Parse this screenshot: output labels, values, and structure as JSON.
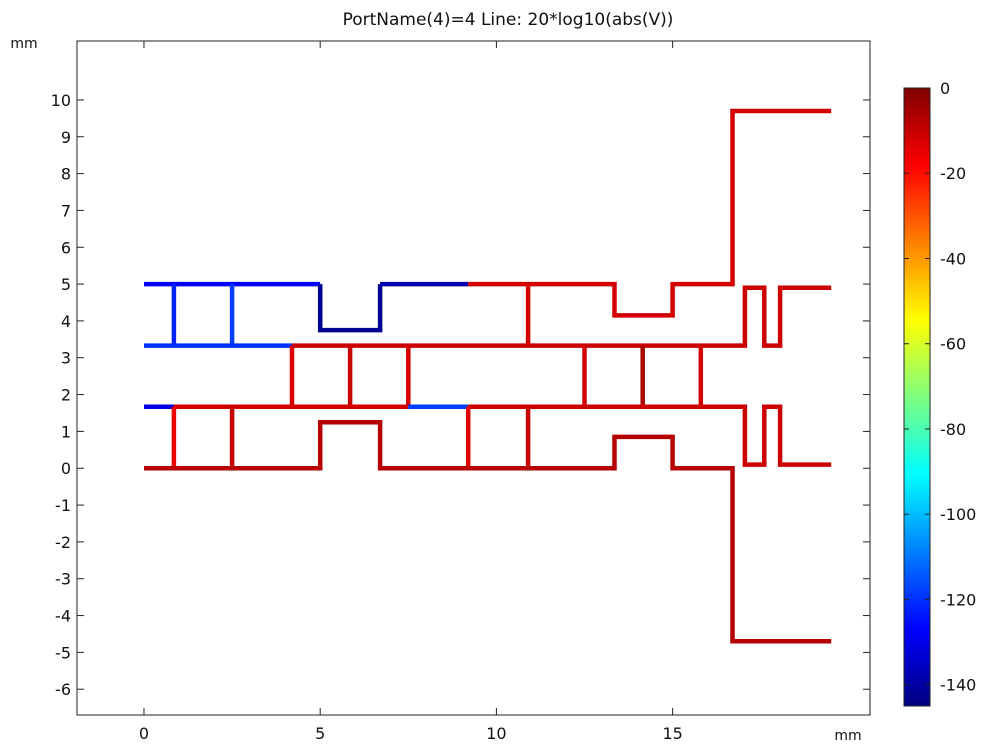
{
  "title": "PortName(4)=4   Line: 20*log10(abs(V))",
  "chart_data": {
    "type": "line",
    "title": "PortName(4)=4   Line: 20*log10(abs(V))",
    "xlabel": "mm",
    "ylabel": "mm",
    "xlim": [
      -1.9,
      20.6
    ],
    "ylim": [
      -6.7,
      11.6
    ],
    "x_ticks": [
      0,
      5,
      10,
      15
    ],
    "y_ticks": [
      -6,
      -5,
      -4,
      -3,
      -2,
      -1,
      0,
      1,
      2,
      3,
      4,
      5,
      6,
      7,
      8,
      9,
      10
    ],
    "grid": false,
    "colorbar": {
      "min": -145,
      "max": 0,
      "ticks": [
        0,
        -20,
        -40,
        -60,
        -80,
        -100,
        -120,
        -140
      ],
      "colormap": "rainbow (dark blue to dark red)"
    },
    "segments": [
      {
        "path": [
          [
            0,
            5
          ],
          [
            5,
            5
          ]
        ],
        "value": -128
      },
      {
        "path": [
          [
            5,
            5
          ],
          [
            5,
            3.75
          ],
          [
            6.7,
            3.75
          ],
          [
            6.7,
            5
          ]
        ],
        "value": -142
      },
      {
        "path": [
          [
            6.7,
            5
          ],
          [
            9.2,
            5
          ]
        ],
        "value": -138
      },
      {
        "path": [
          [
            0.85,
            5
          ],
          [
            0.85,
            3.33
          ]
        ],
        "value": -122
      },
      {
        "path": [
          [
            2.5,
            5
          ],
          [
            2.5,
            3.33
          ]
        ],
        "value": -118
      },
      {
        "path": [
          [
            0,
            3.33
          ],
          [
            4.2,
            3.33
          ]
        ],
        "value": -120
      },
      {
        "path": [
          [
            9.2,
            5
          ],
          [
            13.35,
            5
          ],
          [
            13.35,
            4.15
          ],
          [
            15,
            4.15
          ],
          [
            15,
            5
          ],
          [
            16.7,
            5
          ],
          [
            16.7,
            9.7
          ],
          [
            19.5,
            9.7
          ]
        ],
        "value": -12
      },
      {
        "path": [
          [
            10.9,
            5
          ],
          [
            10.9,
            3.33
          ]
        ],
        "value": -12
      },
      {
        "path": [
          [
            4.2,
            3.33
          ],
          [
            17.05,
            3.33
          ],
          [
            17.05,
            4.9
          ],
          [
            17.6,
            4.9
          ],
          [
            17.6,
            3.33
          ],
          [
            18.05,
            3.33
          ],
          [
            18.05,
            4.9
          ],
          [
            19.5,
            4.9
          ]
        ],
        "value": -11
      },
      {
        "path": [
          [
            4.2,
            3.33
          ],
          [
            4.2,
            1.67
          ]
        ],
        "value": -13
      },
      {
        "path": [
          [
            5.85,
            3.33
          ],
          [
            5.85,
            1.67
          ]
        ],
        "value": -10
      },
      {
        "path": [
          [
            7.5,
            3.33
          ],
          [
            7.5,
            1.67
          ]
        ],
        "value": -12
      },
      {
        "path": [
          [
            12.5,
            3.33
          ],
          [
            12.5,
            1.67
          ]
        ],
        "value": -12
      },
      {
        "path": [
          [
            14.15,
            3.33
          ],
          [
            14.15,
            1.67
          ]
        ],
        "value": -6
      },
      {
        "path": [
          [
            15.8,
            3.33
          ],
          [
            15.8,
            1.67
          ]
        ],
        "value": -12
      },
      {
        "path": [
          [
            0,
            1.67
          ],
          [
            0.85,
            1.67
          ]
        ],
        "value": -130
      },
      {
        "path": [
          [
            0.85,
            1.67
          ],
          [
            7.5,
            1.67
          ]
        ],
        "value": -12
      },
      {
        "path": [
          [
            7.5,
            1.67
          ],
          [
            9.2,
            1.67
          ]
        ],
        "value": -118
      },
      {
        "path": [
          [
            9.2,
            1.67
          ],
          [
            17.05,
            1.67
          ],
          [
            17.05,
            0.1
          ],
          [
            17.6,
            0.1
          ],
          [
            17.6,
            1.67
          ],
          [
            18.05,
            1.67
          ],
          [
            18.05,
            0.1
          ],
          [
            19.5,
            0.1
          ]
        ],
        "value": -11
      },
      {
        "path": [
          [
            0.85,
            1.67
          ],
          [
            0.85,
            0
          ]
        ],
        "value": -15
      },
      {
        "path": [
          [
            2.5,
            1.67
          ],
          [
            2.5,
            0
          ]
        ],
        "value": -10
      },
      {
        "path": [
          [
            9.2,
            1.67
          ],
          [
            9.2,
            0
          ]
        ],
        "value": -14
      },
      {
        "path": [
          [
            10.9,
            1.67
          ],
          [
            10.9,
            0
          ]
        ],
        "value": -10
      },
      {
        "path": [
          [
            0,
            0
          ],
          [
            5,
            0
          ],
          [
            5,
            1.25
          ],
          [
            6.7,
            1.25
          ],
          [
            6.7,
            0
          ],
          [
            13.35,
            0
          ],
          [
            13.35,
            0.85
          ],
          [
            15,
            0.85
          ],
          [
            15,
            0
          ],
          [
            16.7,
            0
          ],
          [
            16.7,
            -4.7
          ],
          [
            19.5,
            -4.7
          ]
        ],
        "value": -8
      }
    ]
  }
}
